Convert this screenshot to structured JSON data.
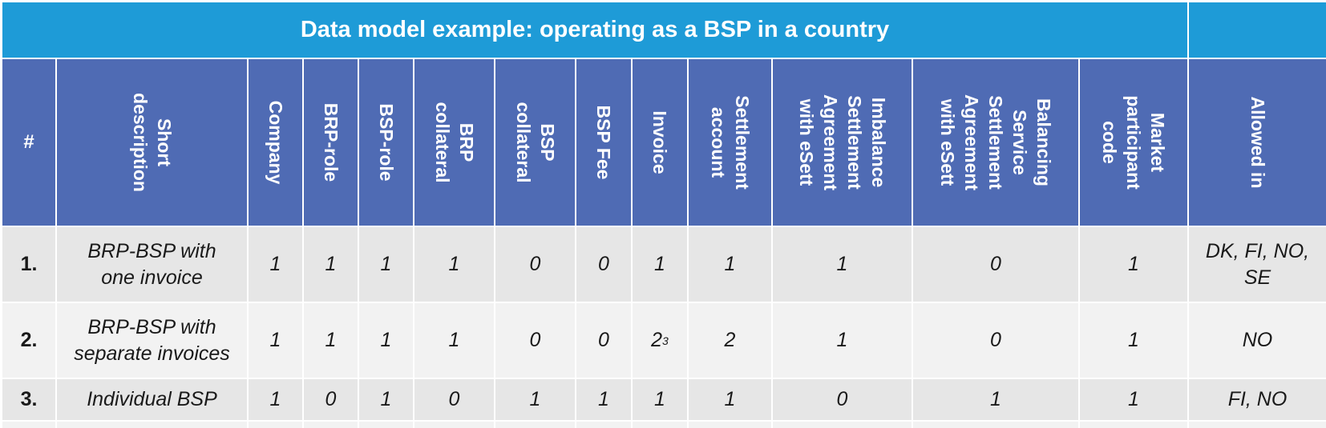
{
  "title": "Data model example: operating as a BSP in a country",
  "columns": [
    "#",
    "Short\ndescription",
    "Company",
    "BRP-role",
    "BSP-role",
    "BRP\ncollateral",
    "BSP\ncollateral",
    "BSP Fee",
    "Invoice",
    "Settlement\naccount",
    "Imbalance\nSettlement\nAgreement\nwith eSett",
    "Balancing\nService\nSettlement\nAgreement\nwith eSett",
    "Market\nparticipant\ncode",
    "Allowed in"
  ],
  "rows": [
    [
      "1.",
      "BRP-BSP with\none invoice",
      "1",
      "1",
      "1",
      "1",
      "0",
      "0",
      "1",
      "1",
      "1",
      "0",
      "1",
      "DK, FI, NO,\nSE"
    ],
    [
      "2.",
      "BRP-BSP with\nseparate invoices",
      "1",
      "1",
      "1",
      "1",
      "0",
      "0",
      "2",
      "2",
      "1",
      "0",
      "1",
      "NO"
    ],
    [
      "3.",
      "Individual BSP",
      "1",
      "0",
      "1",
      "0",
      "1",
      "1",
      "1",
      "1",
      "0",
      "1",
      "1",
      "FI, NO"
    ]
  ],
  "footnote_marks": {
    "row2_invoice": "3"
  },
  "colors": {
    "title_bg": "#1E9BD7",
    "header_bg": "#4F6BB4",
    "row_dark": "#E6E6E6",
    "row_light": "#F2F2F2"
  }
}
